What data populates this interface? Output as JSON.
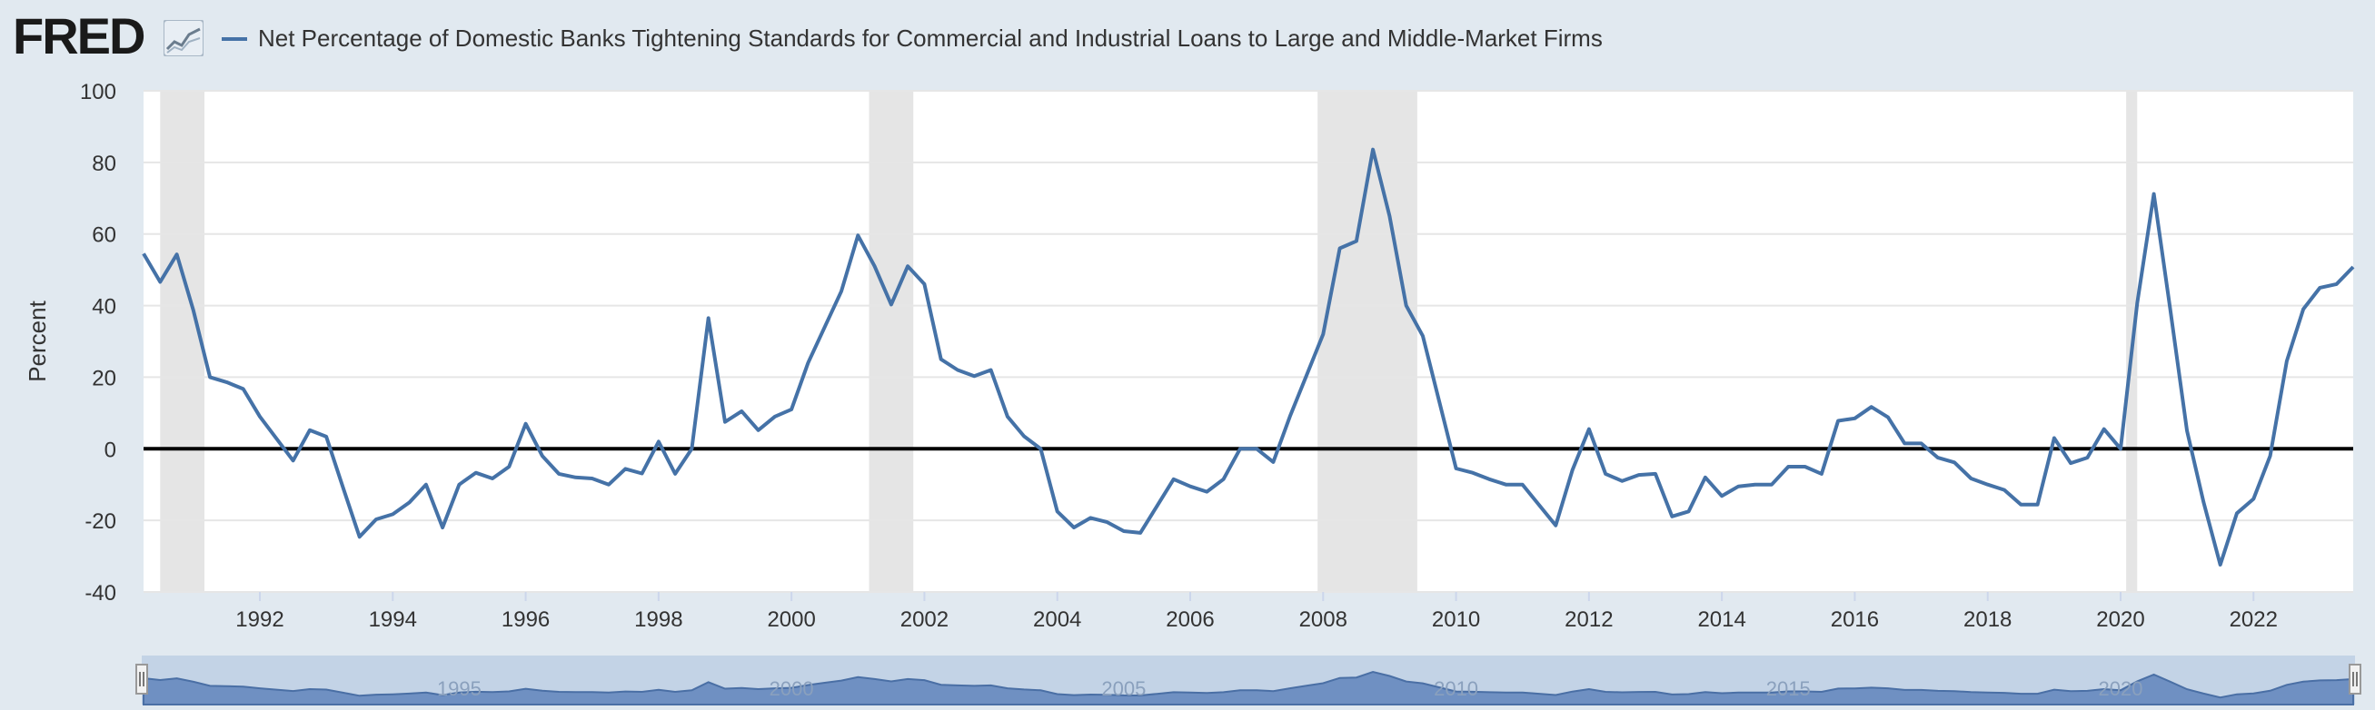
{
  "header": {
    "logo_text": "FRED",
    "logo_icon": "fred-chart-logo-icon"
  },
  "chart_data": {
    "type": "line",
    "title": "Net Percentage of Domestic Banks Tightening Standards for Commercial and Industrial Loans to Large and Middle-Market Firms",
    "ylabel": "Percent",
    "xlabel": "",
    "xlim": [
      "1990-04-01",
      "2023-07-01"
    ],
    "ylim": [
      -40,
      100
    ],
    "yticks": [
      -40,
      -20,
      0,
      20,
      40,
      60,
      80,
      100
    ],
    "xticks": [
      "1992",
      "1994",
      "1996",
      "1998",
      "2000",
      "2002",
      "2004",
      "2006",
      "2008",
      "2010",
      "2012",
      "2014",
      "2016",
      "2018",
      "2020",
      "2022"
    ],
    "grid": true,
    "legend": "top-left",
    "series_color": "#4572a7",
    "recessions": [
      [
        "1990-07-01",
        "1991-03-01"
      ],
      [
        "2001-03-01",
        "2001-11-01"
      ],
      [
        "2007-12-01",
        "2009-06-01"
      ],
      [
        "2020-02-01",
        "2020-04-01"
      ]
    ],
    "series": [
      {
        "name": "Net Percentage of Domestic Banks Tightening Standards for Commercial and Industrial Loans to Large and Middle-Market Firms",
        "x": [
          "1990-04-01",
          "1990-07-01",
          "1990-10-01",
          "1991-01-01",
          "1991-04-01",
          "1991-07-01",
          "1991-10-01",
          "1992-01-01",
          "1992-07-01",
          "1992-10-01",
          "1993-01-01",
          "1993-04-01",
          "1993-07-01",
          "1993-10-01",
          "1994-01-01",
          "1994-04-01",
          "1994-07-01",
          "1994-10-01",
          "1995-01-01",
          "1995-04-01",
          "1995-07-01",
          "1995-10-01",
          "1996-01-01",
          "1996-04-01",
          "1996-07-01",
          "1996-10-01",
          "1997-01-01",
          "1997-04-01",
          "1997-07-01",
          "1997-10-01",
          "1998-01-01",
          "1998-04-01",
          "1998-07-01",
          "1998-10-01",
          "1999-01-01",
          "1999-04-01",
          "1999-07-01",
          "1999-10-01",
          "2000-01-01",
          "2000-04-01",
          "2000-07-01",
          "2000-10-01",
          "2001-01-01",
          "2001-04-01",
          "2001-07-01",
          "2001-10-01",
          "2002-01-01",
          "2002-04-01",
          "2002-07-01",
          "2002-10-01",
          "2003-01-01",
          "2003-04-01",
          "2003-07-01",
          "2003-10-01",
          "2004-01-01",
          "2004-04-01",
          "2004-07-01",
          "2004-10-01",
          "2005-01-01",
          "2005-04-01",
          "2005-07-01",
          "2005-10-01",
          "2006-01-01",
          "2006-04-01",
          "2006-07-01",
          "2006-10-01",
          "2007-01-01",
          "2007-04-01",
          "2007-07-01",
          "2007-10-01",
          "2008-01-01",
          "2008-04-01",
          "2008-07-01",
          "2008-10-01",
          "2009-01-01",
          "2009-04-01",
          "2009-07-01",
          "2009-10-01",
          "2010-01-01",
          "2010-04-01",
          "2010-07-01",
          "2010-10-01",
          "2011-01-01",
          "2011-04-01",
          "2011-07-01",
          "2011-10-01",
          "2012-01-01",
          "2012-04-01",
          "2012-07-01",
          "2012-10-01",
          "2013-01-01",
          "2013-04-01",
          "2013-07-01",
          "2013-10-01",
          "2014-01-01",
          "2014-04-01",
          "2014-07-01",
          "2014-10-01",
          "2015-01-01",
          "2015-04-01",
          "2015-07-01",
          "2015-10-01",
          "2016-01-01",
          "2016-04-01",
          "2016-07-01",
          "2016-10-01",
          "2017-01-01",
          "2017-04-01",
          "2017-07-01",
          "2017-10-01",
          "2018-01-01",
          "2018-04-01",
          "2018-07-01",
          "2018-10-01",
          "2019-01-01",
          "2019-04-01",
          "2019-07-01",
          "2019-10-01",
          "2020-01-01",
          "2020-04-01",
          "2020-07-01",
          "2020-10-01",
          "2021-01-01",
          "2021-04-01",
          "2021-07-01",
          "2021-10-01",
          "2022-01-01",
          "2022-04-01",
          "2022-07-01",
          "2022-10-01",
          "2023-01-01",
          "2023-04-01",
          "2023-07-01"
        ],
        "values": [
          54.5,
          46.6,
          54.3,
          38.6,
          20,
          18.6,
          16.7,
          9,
          -3.3,
          5.2,
          3.4,
          -10.7,
          -24.6,
          -19.7,
          -18.3,
          -15,
          -10,
          -22,
          -10,
          -6.7,
          -8.3,
          -5,
          7,
          -2,
          -7,
          -8,
          -8.3,
          -10,
          -5.6,
          -6.9,
          2,
          -7,
          0,
          36.5,
          7.5,
          10.5,
          5.2,
          9,
          11,
          24,
          34,
          44,
          59.6,
          51,
          40.3,
          51,
          46,
          25,
          22,
          20.3,
          22,
          9,
          3.5,
          0,
          -17.5,
          -22,
          -19.3,
          -20.5,
          -23,
          -23.5,
          -16,
          -8.5,
          -10.5,
          -12,
          -8.5,
          0,
          0,
          -3.7,
          9,
          20.5,
          32,
          56,
          58,
          83.6,
          65,
          40,
          31.5,
          13,
          -5.5,
          -6.7,
          -8.5,
          -10,
          -10,
          -15.7,
          -21.4,
          -6,
          5.5,
          -7,
          -9,
          -7.3,
          -7,
          -18.9,
          -17.5,
          -8,
          -13.2,
          -10.5,
          -10,
          -10,
          -5,
          -5,
          -7,
          7.8,
          8.5,
          11.7,
          8.8,
          1.5,
          1.5,
          -2.5,
          -3.8,
          -8.3,
          -10,
          -11.5,
          -15.6,
          -15.6,
          3,
          -4,
          -2.5,
          5.5,
          0,
          40.7,
          71.2,
          38.5,
          5,
          -15,
          -32.4,
          -18,
          -14,
          -2,
          24.5,
          39,
          45,
          46,
          50.8
        ]
      }
    ]
  }
}
